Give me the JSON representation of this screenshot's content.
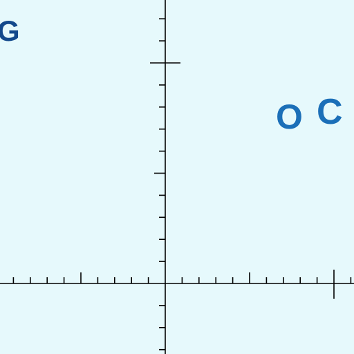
{
  "background_color": "#e6f9fc",
  "axis_color": "#000000",
  "labels": {
    "g": {
      "text": "G",
      "color": "#13498c"
    },
    "o": {
      "text": "O",
      "color": "#1b6fb8"
    },
    "c": {
      "text": "C",
      "color": "#1b6fb8"
    }
  }
}
